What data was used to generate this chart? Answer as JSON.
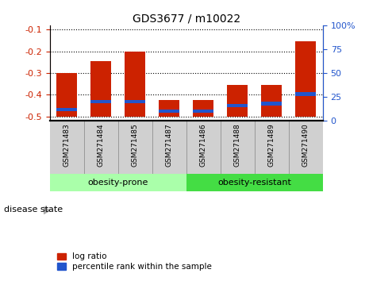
{
  "title": "GDS3677 / m10022",
  "samples": [
    "GSM271483",
    "GSM271484",
    "GSM271485",
    "GSM271487",
    "GSM271486",
    "GSM271488",
    "GSM271489",
    "GSM271490"
  ],
  "log_ratio": [
    -0.3,
    -0.245,
    -0.202,
    -0.425,
    -0.425,
    -0.355,
    -0.355,
    -0.155
  ],
  "percentile_rank": [
    12,
    20,
    20,
    10,
    10,
    16,
    18,
    28
  ],
  "groups": [
    {
      "label": "obesity-prone",
      "start": 0,
      "end": 4,
      "color": "#aaffaa"
    },
    {
      "label": "obesity-resistant",
      "start": 4,
      "end": 8,
      "color": "#44dd44"
    }
  ],
  "bar_bottom": -0.5,
  "ylim_left": [
    -0.52,
    -0.08
  ],
  "ylim_right": [
    0,
    100
  ],
  "yticks_left": [
    -0.5,
    -0.4,
    -0.3,
    -0.2,
    -0.1
  ],
  "yticks_right": [
    0,
    25,
    50,
    75,
    100
  ],
  "red_color": "#cc2200",
  "blue_color": "#2255cc",
  "bar_width": 0.6,
  "tick_label_color_left": "#cc2200",
  "tick_label_color_right": "#2255cc",
  "bg_color_plot": "#ffffff",
  "bg_color_xlabel": "#d0d0d0",
  "disease_state_label": "disease state",
  "legend_log_ratio": "log ratio",
  "legend_percentile": "percentile rank within the sample"
}
